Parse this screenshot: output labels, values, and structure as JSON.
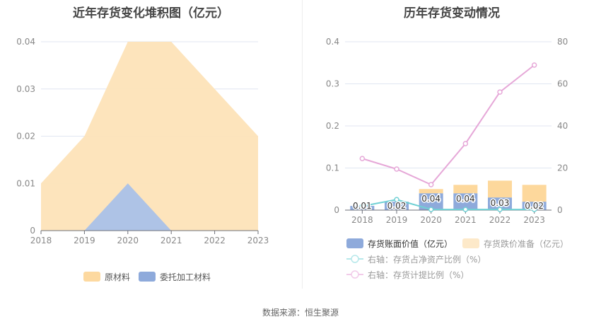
{
  "left_chart": {
    "title": "近年存货变化堆积图（亿元）",
    "y_ticks": [
      "0",
      "0.01",
      "0.02",
      "0.03",
      "0.04"
    ],
    "x_ticks": [
      "2018",
      "2019",
      "2020",
      "2021",
      "2022",
      "2023"
    ],
    "legend": [
      {
        "label": "原材料",
        "color": "#fde3b8"
      },
      {
        "label": "委托加工材料",
        "color": "#8eaadb"
      }
    ]
  },
  "right_chart": {
    "title": "历年存货变动情况",
    "y_left_ticks": [
      "0",
      "0.1",
      "0.2",
      "0.3",
      "0.4"
    ],
    "y_right_ticks": [
      "0",
      "20",
      "40",
      "60",
      "80"
    ],
    "x_ticks": [
      "2018",
      "2019",
      "2020",
      "2021",
      "2022",
      "2023"
    ],
    "bar_labels": [
      "0.01",
      "0.02",
      "0.04",
      "0.04",
      "0.03",
      "0.02"
    ],
    "legend": [
      {
        "label": "存货账面价值（亿元）",
        "color": "#8eaadb"
      },
      {
        "label": "存货跌价准备（亿元）",
        "color": "#fde9c9"
      },
      {
        "label": "右轴：存货占净资产比例（%）",
        "color": "#7fd4d8"
      },
      {
        "label": "右轴：存货计提比例（%）",
        "color": "#e6a8d8"
      }
    ]
  },
  "footer": {
    "source": "数据来源：恒生聚源"
  },
  "chart_data": [
    {
      "type": "area",
      "title": "近年存货变化堆积图（亿元）",
      "categories": [
        "2018",
        "2019",
        "2020",
        "2021",
        "2022",
        "2023"
      ],
      "stacked": true,
      "series": [
        {
          "name": "原材料",
          "values": [
            0.01,
            0.02,
            0.03,
            0.04,
            0.03,
            0.02
          ]
        },
        {
          "name": "委托加工材料",
          "values": [
            0,
            0,
            0.01,
            0,
            0,
            0
          ]
        }
      ],
      "ylim": [
        0,
        0.04
      ],
      "grid": true,
      "legend_position": "bottom"
    },
    {
      "type": "bar",
      "title": "历年存货变动情况",
      "categories": [
        "2018",
        "2019",
        "2020",
        "2021",
        "2022",
        "2023"
      ],
      "stacked": true,
      "series": [
        {
          "name": "存货账面价值（亿元）",
          "axis": "left",
          "type": "bar",
          "values": [
            0.01,
            0.02,
            0.04,
            0.04,
            0.03,
            0.02
          ]
        },
        {
          "name": "存货跌价准备（亿元）",
          "axis": "left",
          "type": "bar",
          "values": [
            0,
            0,
            0.01,
            0.02,
            0.04,
            0.04
          ]
        },
        {
          "name": "右轴：存货占净资产比例（%）",
          "axis": "right",
          "type": "line",
          "values": [
            1.9,
            5.0,
            0.3,
            0.3,
            0.3,
            0.3
          ]
        },
        {
          "name": "右轴：存货计提比例（%）",
          "axis": "right",
          "type": "line",
          "values": [
            24.5,
            19.5,
            12.1,
            31.6,
            56.1,
            68.9
          ]
        }
      ],
      "ylim": [
        0,
        0.4
      ],
      "y2lim": [
        0,
        80
      ],
      "grid": true,
      "legend_position": "bottom"
    }
  ]
}
